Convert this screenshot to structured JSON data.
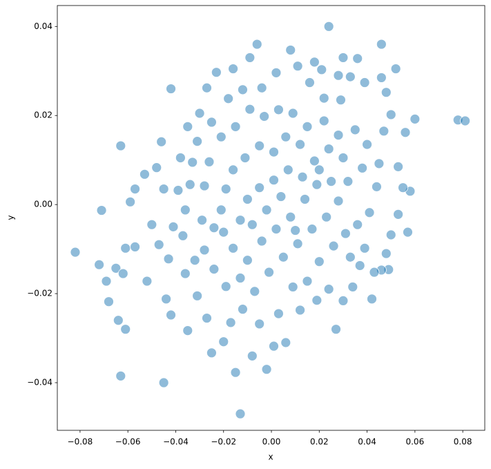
{
  "chart_data": {
    "type": "scatter",
    "xlabel": "x",
    "ylabel": "y",
    "color": "#1f77b4",
    "grid": false,
    "xlim": [
      -0.0895,
      0.0892
    ],
    "ylim": [
      -0.0507,
      0.0447
    ],
    "xticks": [
      {
        "value": -0.08,
        "label": "−0.08"
      },
      {
        "value": -0.06,
        "label": "−0.06"
      },
      {
        "value": -0.04,
        "label": "−0.04"
      },
      {
        "value": -0.02,
        "label": "−0.02"
      },
      {
        "value": 0,
        "label": "0.00"
      },
      {
        "value": 0.02,
        "label": "0.02"
      },
      {
        "value": 0.04,
        "label": "0.04"
      },
      {
        "value": 0.06,
        "label": "0.06"
      },
      {
        "value": 0.08,
        "label": "0.08"
      }
    ],
    "yticks": [
      {
        "value": -0.04,
        "label": "−0.04"
      },
      {
        "value": -0.02,
        "label": "−0.02"
      },
      {
        "value": 0,
        "label": "0.00"
      },
      {
        "value": 0.02,
        "label": "0.02"
      },
      {
        "value": 0.04,
        "label": "0.04"
      }
    ],
    "x": [
      0.078,
      0.081,
      -0.082,
      0.024,
      -0.013,
      -0.045,
      -0.063,
      -0.071,
      -0.063,
      0.046,
      -0.006,
      0.008,
      -0.042,
      -0.002,
      -0.015,
      -0.072,
      -0.069,
      -0.068,
      -0.064,
      -0.061,
      -0.065,
      -0.062,
      -0.061,
      -0.057,
      -0.059,
      -0.057,
      -0.053,
      -0.048,
      -0.046,
      0.06,
      0.058,
      0.057,
      0.049,
      0.046,
      0.042,
      0.027,
      0.03,
      0.036,
      0.052,
      0.018,
      0.021,
      -0.009,
      -0.016,
      -0.023,
      -0.027,
      -0.03,
      -0.035,
      -0.038,
      -0.039,
      -0.041,
      -0.043,
      -0.044,
      -0.042,
      -0.035,
      -0.025,
      -0.02,
      -0.008,
      0.001,
      0.006,
      0.012,
      0.019,
      0.024,
      0.03,
      0.034,
      0.037,
      0.043,
      0.048,
      0.05,
      0.053,
      0.055,
      0.053,
      0.056,
      0.05,
      0.048,
      0.046,
      0.039,
      0.033,
      0.028,
      0.029,
      0.022,
      0.016,
      0.011,
      0.002,
      -0.004,
      -0.012,
      -0.018,
      -0.025,
      -0.031,
      -0.033,
      -0.034,
      -0.036,
      -0.037,
      -0.036,
      -0.031,
      -0.027,
      -0.017,
      -0.012,
      -0.005,
      0.003,
      0.009,
      0.015,
      0.02,
      0.026,
      0.031,
      0.036,
      0.041,
      0.044,
      0.045,
      0.04,
      0.035,
      0.028,
      0.022,
      0.015,
      0.009,
      0.003,
      -0.003,
      -0.009,
      -0.015,
      -0.021,
      -0.026,
      -0.028,
      -0.029,
      -0.028,
      -0.024,
      -0.019,
      -0.013,
      -0.007,
      -0.001,
      0.005,
      0.011,
      0.017,
      0.023,
      0.028,
      0.032,
      0.03,
      0.024,
      0.018,
      0.012,
      0.006,
      0.001,
      -0.005,
      -0.011,
      -0.016,
      -0.019,
      -0.021,
      -0.02,
      -0.016,
      -0.01,
      -0.004,
      0.002,
      0.008,
      0.014,
      0.019,
      0.013,
      0.007,
      0.001,
      -0.005,
      -0.01,
      -0.013,
      -0.008,
      -0.002,
      0.004,
      0.01,
      0.025,
      0.038,
      -0.045,
      -0.05,
      -0.052,
      -0.047,
      0.039,
      0.047,
      -0.024,
      0.02,
      -0.032,
      0.033
    ],
    "y": [
      0.019,
      0.0188,
      -0.0107,
      0.04,
      -0.047,
      -0.04,
      -0.0385,
      -0.0013,
      0.0132,
      0.036,
      0.036,
      0.0347,
      0.026,
      -0.037,
      -0.0377,
      -0.0135,
      -0.0172,
      -0.0218,
      -0.026,
      -0.028,
      -0.0143,
      -0.0155,
      -0.0098,
      -0.0095,
      0.0006,
      0.0035,
      0.0068,
      0.0083,
      0.0141,
      0.0192,
      0.003,
      -0.0062,
      -0.0146,
      -0.0147,
      -0.0212,
      -0.028,
      0.033,
      0.0328,
      0.0305,
      0.032,
      0.0303,
      0.033,
      0.0305,
      0.0297,
      0.0262,
      0.0205,
      0.0175,
      0.0105,
      0.0032,
      -0.005,
      -0.0122,
      -0.0212,
      -0.0248,
      -0.0283,
      -0.0333,
      -0.0308,
      -0.034,
      -0.0318,
      -0.031,
      -0.0237,
      -0.0215,
      -0.019,
      -0.0216,
      -0.0185,
      -0.0137,
      -0.0152,
      -0.011,
      -0.0068,
      -0.0022,
      0.0038,
      0.0085,
      0.0162,
      0.0202,
      0.0252,
      0.0285,
      0.0274,
      0.0287,
      0.029,
      0.0235,
      0.0239,
      0.0274,
      0.0311,
      0.0296,
      0.0262,
      0.0258,
      0.0238,
      0.0185,
      0.0142,
      0.0095,
      0.0045,
      -0.0012,
      -0.007,
      -0.0155,
      -0.0205,
      -0.0255,
      -0.0265,
      -0.0235,
      -0.0268,
      -0.0245,
      -0.0185,
      -0.0172,
      -0.0128,
      -0.0093,
      -0.0065,
      -0.0045,
      -0.0018,
      0.004,
      0.0092,
      0.0135,
      0.0168,
      0.0156,
      0.0188,
      0.0175,
      0.0205,
      0.0213,
      0.0198,
      0.0214,
      0.0175,
      0.0152,
      0.0096,
      0.0042,
      -0.0035,
      -0.0102,
      -0.0145,
      -0.0184,
      -0.0165,
      -0.0195,
      -0.0152,
      -0.0118,
      -0.0088,
      -0.0055,
      -0.0028,
      0.0008,
      0.0052,
      0.0105,
      0.0125,
      0.0098,
      0.0135,
      0.0152,
      0.0118,
      0.0132,
      0.0105,
      0.0078,
      0.0035,
      -0.0012,
      -0.0062,
      -0.0098,
      -0.0125,
      -0.0082,
      -0.0055,
      -0.0028,
      0.0012,
      0.0045,
      0.0062,
      0.0078,
      0.0055,
      0.0038,
      0.0012,
      -0.0035,
      -0.0045,
      -0.0012,
      0.0018,
      -0.0058,
      0.0052,
      0.0082,
      0.0035,
      -0.0045,
      -0.0172,
      -0.009,
      -0.0098,
      0.0165,
      -0.0052,
      0.0078,
      -0.0125,
      -0.0118
    ]
  }
}
